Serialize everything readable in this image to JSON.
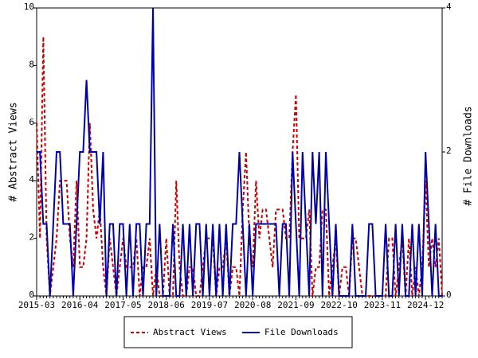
{
  "chart_data": {
    "type": "line",
    "categories": [
      "2015-03",
      null,
      null,
      null,
      null,
      null,
      null,
      null,
      null,
      null,
      null,
      null,
      null,
      "2016-04",
      null,
      null,
      null,
      null,
      null,
      null,
      null,
      null,
      null,
      null,
      null,
      null,
      "2017-05",
      null,
      null,
      null,
      null,
      null,
      null,
      null,
      null,
      null,
      null,
      null,
      null,
      "2018-06",
      null,
      null,
      null,
      null,
      null,
      null,
      null,
      null,
      null,
      null,
      null,
      null,
      "2019-07",
      null,
      null,
      null,
      null,
      null,
      null,
      null,
      null,
      null,
      null,
      null,
      null,
      "2020-08",
      null,
      null,
      null,
      null,
      null,
      null,
      null,
      null,
      null,
      null,
      null,
      null,
      "2021-09",
      null,
      null,
      null,
      null,
      null,
      null,
      null,
      null,
      null,
      null,
      null,
      null,
      "2022-10",
      null,
      null,
      null,
      null,
      null,
      null,
      null,
      null,
      null,
      null,
      null,
      null,
      "2023-11",
      null,
      null,
      null,
      null,
      null,
      null,
      null,
      null,
      null,
      null,
      null,
      null,
      "2024-12",
      null,
      null,
      null,
      null,
      null
    ],
    "series": [
      {
        "name": "Abstract Views",
        "color": "#cc0000",
        "dashed": true,
        "values": [
          6,
          2,
          9,
          2,
          0,
          1,
          2,
          4,
          4,
          4,
          2,
          1,
          4,
          1,
          1,
          2,
          6,
          3,
          2,
          3,
          1,
          0,
          2,
          1,
          0,
          1,
          2,
          1,
          1,
          1,
          2,
          0,
          1,
          1,
          2,
          0,
          1,
          0,
          0,
          2,
          0,
          0,
          4,
          1,
          0,
          0,
          1,
          1,
          0,
          0,
          1,
          2,
          2,
          2,
          0,
          1,
          1,
          2,
          0,
          1,
          1,
          0,
          3,
          5,
          2,
          1,
          4,
          2,
          3,
          3,
          2,
          1,
          3,
          3,
          3,
          2,
          2,
          5,
          7,
          2,
          2,
          2,
          3,
          0,
          1,
          1,
          3,
          3,
          0,
          1,
          2,
          0,
          1,
          1,
          0,
          2,
          2,
          1,
          0,
          0,
          0,
          0,
          0,
          0,
          0,
          0,
          2,
          2,
          0,
          1,
          2,
          0,
          2,
          0,
          1,
          0,
          1,
          4,
          1,
          2,
          1,
          2,
          0
        ]
      },
      {
        "name": "File Downloads",
        "color": "#0000aa",
        "axis": "y2",
        "values": [
          2,
          2,
          1,
          1,
          0,
          1,
          2,
          2,
          1,
          1,
          1,
          0,
          1,
          2,
          2,
          3,
          2,
          2,
          2,
          1,
          2,
          0,
          1,
          1,
          0,
          1,
          1,
          0,
          1,
          0,
          1,
          1,
          0,
          1,
          1,
          4,
          0,
          1,
          0,
          0,
          0,
          1,
          0,
          0,
          1,
          0,
          1,
          0,
          1,
          1,
          0,
          1,
          0,
          1,
          0,
          1,
          0,
          1,
          0,
          1,
          1,
          2,
          1,
          0,
          1,
          0,
          1,
          1,
          1,
          1,
          1,
          1,
          1,
          0,
          1,
          1,
          0,
          2,
          1,
          0,
          2,
          1,
          0,
          2,
          1,
          2,
          0,
          2,
          1,
          0,
          1,
          0,
          0,
          0,
          0,
          1,
          0,
          0,
          0,
          0,
          1,
          1,
          0,
          0,
          0,
          1,
          0,
          0,
          1,
          0,
          1,
          0,
          0,
          1,
          0,
          1,
          0,
          2,
          1,
          0,
          1,
          0,
          0
        ]
      }
    ],
    "y_label": "# Abstract Views",
    "y2_label": "# File Downloads",
    "ylim": [
      0,
      10
    ],
    "yticks": [
      0,
      2,
      4,
      6,
      8,
      10
    ],
    "y2lim": [
      0,
      4
    ],
    "y2ticks": [
      0,
      2,
      4
    ]
  }
}
